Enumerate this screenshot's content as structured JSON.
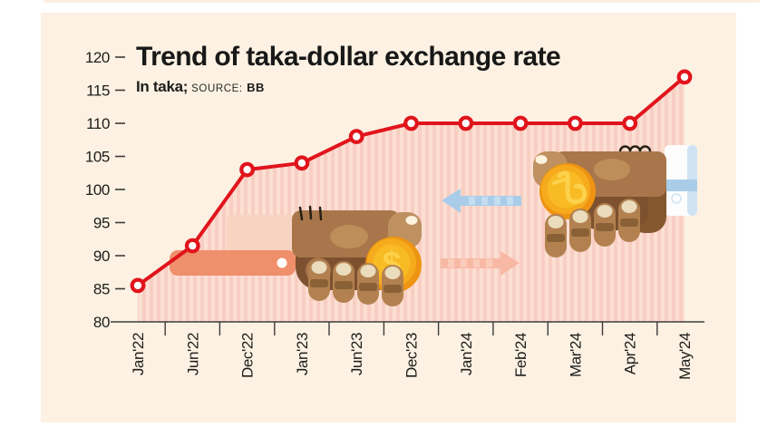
{
  "header": {
    "unit_label": "In taka;",
    "source_label": "SOURCE:",
    "source_value": "BB"
  },
  "illustration": {
    "left_hand": "brown-hand-holding-dollar-coin",
    "right_hand": "brown-hand-holding-taka-coin",
    "dollar_symbol": "$",
    "taka_symbol": "৳",
    "arrows": [
      "blue-arrow-pointing-left",
      "salmon-arrow-pointing-right"
    ]
  },
  "chart_data": {
    "type": "line",
    "title": "Trend of taka-dollar exchange rate",
    "categories": [
      "Jan'22",
      "Jun'22",
      "Dec'22",
      "Jan'23",
      "Jun'23",
      "Dec'23",
      "Jan'24",
      "Feb'24",
      "Mar'24",
      "Apr'24",
      "May'24"
    ],
    "values": [
      85.5,
      91.5,
      103,
      104,
      108,
      110,
      110,
      110,
      110,
      110,
      117
    ],
    "xlabel": "",
    "ylabel": "",
    "ylim": [
      80,
      120
    ],
    "yticks": [
      80,
      85,
      90,
      95,
      100,
      105,
      110,
      115,
      120
    ],
    "grid": false,
    "legend": "none",
    "line_color": "#e1141c",
    "marker_style": "open-circle-white-fill",
    "area_fill": "pink-vertical-stripes",
    "stripe_colors": [
      "#f8cec3",
      "#fcdfd3"
    ],
    "background_color": "#fcf1e2",
    "text_color": "#1d1d1b"
  }
}
